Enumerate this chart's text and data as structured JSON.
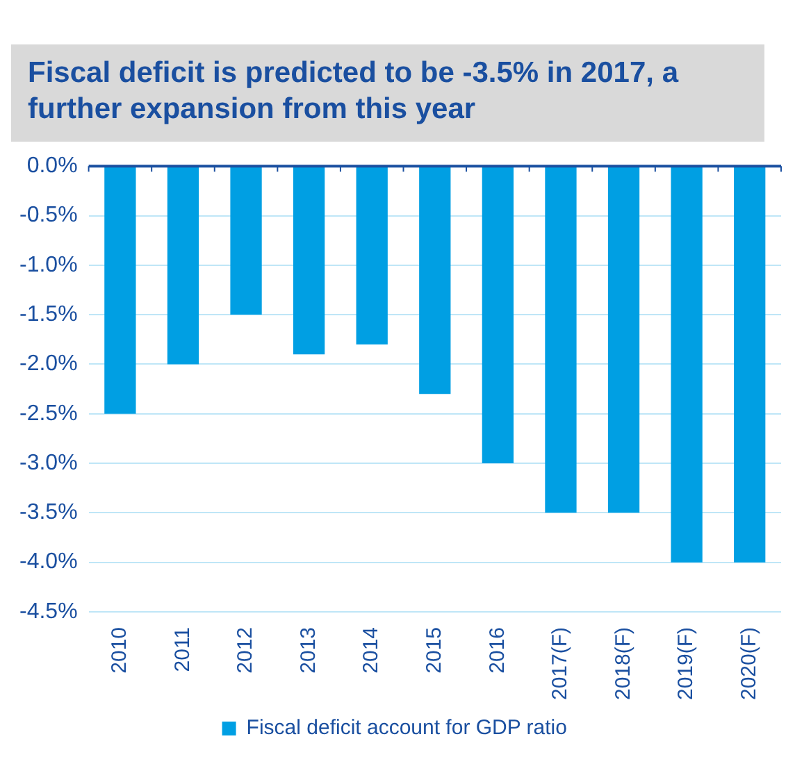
{
  "chart_data": {
    "type": "bar",
    "title": "Fiscal deficit is predicted to be -3.5% in 2017, a further expansion from this year",
    "categories": [
      "2010",
      "2011",
      "2012",
      "2013",
      "2014",
      "2015",
      "2016",
      "2017(F)",
      "2018(F)",
      "2019(F)",
      "2020(F)"
    ],
    "series": [
      {
        "name": "Fiscal deficit account for GDP ratio",
        "color": "#009fe3",
        "values": [
          -2.5,
          -2.0,
          -1.5,
          -1.9,
          -1.8,
          -2.3,
          -3.0,
          -3.5,
          -3.5,
          -4.0,
          -4.0
        ]
      }
    ],
    "ylim": [
      -4.5,
      0
    ],
    "yticks": [
      {
        "value": 0,
        "label": "0.0%"
      },
      {
        "value": -0.5,
        "label": "-0.5%"
      },
      {
        "value": -1,
        "label": "-1.0%"
      },
      {
        "value": -1.5,
        "label": "-1.5%"
      },
      {
        "value": -2,
        "label": "-2.0%"
      },
      {
        "value": -2.5,
        "label": "-2.5%"
      },
      {
        "value": -3,
        "label": "-3.0%"
      },
      {
        "value": -3.5,
        "label": "-3.5%"
      },
      {
        "value": -4,
        "label": "-4.0%"
      },
      {
        "value": -4.5,
        "label": "-4.5%"
      }
    ],
    "grid": "y",
    "legend": "bottom"
  }
}
